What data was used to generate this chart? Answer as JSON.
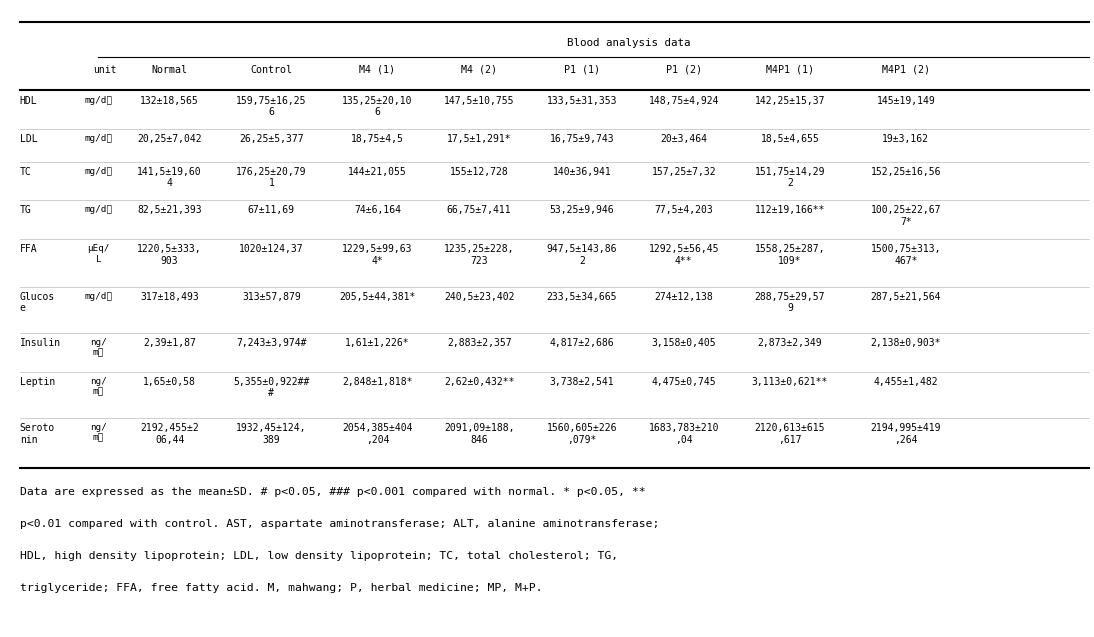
{
  "title": "Blood analysis data",
  "col_headers": [
    "Normal",
    "Control",
    "M4 (1)",
    "M4 (2)",
    "P1 (1)",
    "P1 (2)",
    "M4P1 (1)",
    "M4P1 (2)"
  ],
  "rows": [
    {
      "name": "HDL",
      "unit": "mg/dℓ",
      "values": [
        "132±18,565",
        "159,75±16,25\n6",
        "135,25±20,10\n6",
        "147,5±10,755",
        "133,5±31,353",
        "148,75±4,924",
        "142,25±15,37",
        "145±19,149"
      ]
    },
    {
      "name": "LDL",
      "unit": "mg/dℓ",
      "values": [
        "20,25±7,042",
        "26,25±5,377",
        "18,75±4,5",
        "17,5±1,291*",
        "16,75±9,743",
        "20±3,464",
        "18,5±4,655",
        "19±3,162"
      ]
    },
    {
      "name": "TC",
      "unit": "mg/dℓ",
      "values": [
        "141,5±19,60\n4",
        "176,25±20,79\n1",
        "144±21,055",
        "155±12,728",
        "140±36,941",
        "157,25±7,32",
        "151,75±14,29\n2",
        "152,25±16,56"
      ]
    },
    {
      "name": "TG",
      "unit": "mg/dℓ",
      "values": [
        "82,5±21,393",
        "67±11,69",
        "74±6,164",
        "66,75±7,411",
        "53,25±9,946",
        "77,5±4,203",
        "112±19,166**",
        "100,25±22,67\n7*"
      ]
    },
    {
      "name": "FFA",
      "unit": "μEq/\nL",
      "values": [
        "1220,5±333,\n903",
        "1020±124,37",
        "1229,5±99,63\n4*",
        "1235,25±228,\n723",
        "947,5±143,86\n2",
        "1292,5±56,45\n4**",
        "1558,25±287,\n109*",
        "1500,75±313,\n467*"
      ]
    },
    {
      "name": "Glucos\ne",
      "unit": "mg/dℓ",
      "values": [
        "317±18,493",
        "313±57,879",
        "205,5±44,381*",
        "240,5±23,402",
        "233,5±34,665",
        "274±12,138",
        "288,75±29,57\n9",
        "287,5±21,564"
      ]
    },
    {
      "name": "Insulin",
      "unit": "ng/\nmℓ",
      "values": [
        "2,39±1,87",
        "7,243±3,974#",
        "1,61±1,226*",
        "2,883±2,357",
        "4,817±2,686",
        "3,158±0,405",
        "2,873±2,349",
        "2,138±0,903*"
      ]
    },
    {
      "name": "Leptin",
      "unit": "ng/\nmℓ",
      "values": [
        "1,65±0,58",
        "5,355±0,922##\n#",
        "2,848±1,818*",
        "2,62±0,432**",
        "3,738±2,541",
        "4,475±0,745",
        "3,113±0,621**",
        "4,455±1,482"
      ]
    },
    {
      "name": "Seroto\nnin",
      "unit": "ng/\nmℓ",
      "values": [
        "2192,455±2\n06,44",
        "1932,45±124,\n389",
        "2054,385±404\n,204",
        "2091,09±188,\n846",
        "1560,605±226\n,079*",
        "1683,783±210\n,04",
        "2120,613±615\n,617",
        "2194,995±419\n,264"
      ]
    }
  ],
  "footnote_lines": [
    "Data are expressed as the mean±SD. # p<0.05, ### p<0.001 compared with normal. * p<0.05, **",
    "p<0.01 compared with control. AST, aspartate aminotransferase; ALT, alanine aminotransferase;",
    "HDL, high density lipoprotein; LDL, low density lipoprotein; TC, total cholesterol; TG,",
    "triglyceride; FFA, free fatty acid. M, mahwang; P, herbal medicine; MP, M+P."
  ],
  "bg_color": "#ffffff",
  "text_color": "#000000",
  "font_size": 7.0,
  "header_font_size": 7.2,
  "title_font_size": 7.8,
  "footnote_font_size": 8.2
}
